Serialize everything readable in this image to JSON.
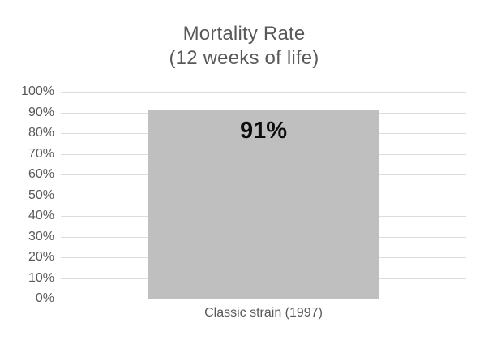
{
  "chart_data": {
    "type": "bar",
    "title": "Mortality Rate",
    "subtitle": "(12 weeks of life)",
    "categories": [
      "Classic strain (1997)"
    ],
    "values": [
      91
    ],
    "data_labels": [
      "91%"
    ],
    "xlabel": "",
    "ylabel": "",
    "ylim": [
      0,
      100
    ],
    "ytick_step": 10,
    "ytick_labels": [
      "0%",
      "10%",
      "20%",
      "30%",
      "40%",
      "50%",
      "60%",
      "70%",
      "80%",
      "90%",
      "100%"
    ],
    "grid": true,
    "legend": false,
    "data_label_position": "inside-top",
    "colors": {
      "bar_fill": "#bfbfbf",
      "gridline": "#dcdcdc",
      "axis_text": "#595959",
      "title_text": "#595959",
      "data_label_text": "#0d0d0d",
      "background": "#ffffff"
    }
  }
}
